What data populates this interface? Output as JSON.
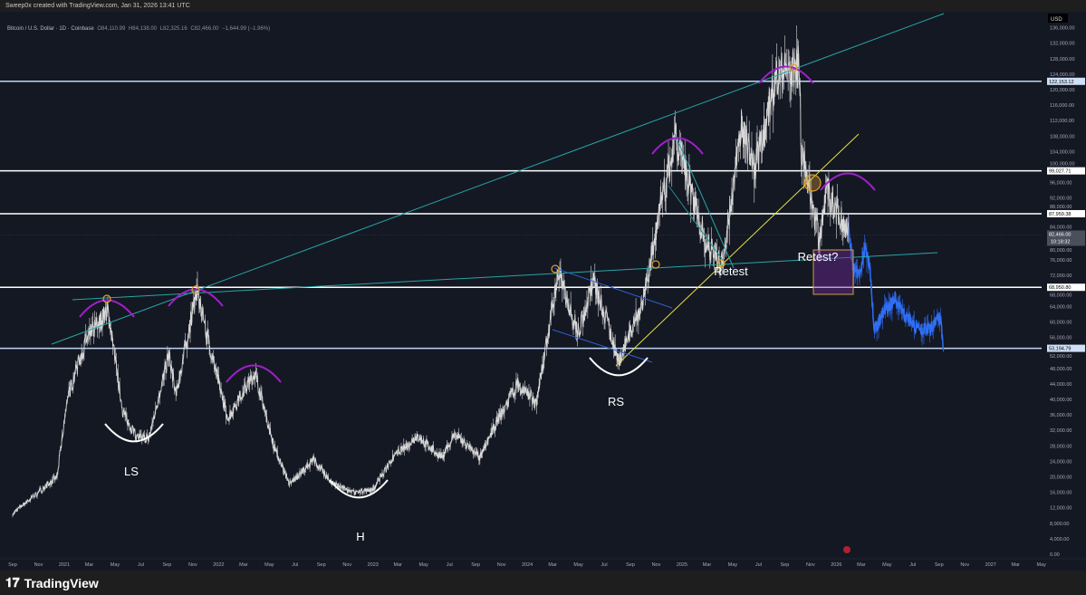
{
  "header": {
    "attribution": "Sweep0x created with TradingView.com, Jan 31, 2026 13:41 UTC"
  },
  "legend": {
    "symbol": "Bitcoin / U.S. Dollar · 1D · Coinbase",
    "open": "O84,110.99",
    "high": "H84,138.00",
    "low": "L82,325.16",
    "close": "C82,466.00",
    "change": "−1,644.99 (−1.96%)"
  },
  "footer": {
    "brand": "TradingView"
  },
  "colors": {
    "background": "#141823",
    "price": "#d8d8d8",
    "projection": "#2f6ef5",
    "teal": "#26a6a6",
    "yellow": "#e6e14a",
    "purple": "#a020c8",
    "orange": "#e0a030",
    "level_white": "#ffffff",
    "level_blue": "#bcd6f5"
  },
  "chart_data": {
    "type": "line",
    "currency": "USD",
    "ylim": [
      0,
      136000
    ],
    "y_ticks": [
      "136,000.00",
      "132,000.00",
      "128,000.00",
      "124,000.00",
      "120,000.00",
      "116,000.00",
      "112,000.00",
      "108,000.00",
      "104,000.00",
      "100,000.00",
      "96,000.00",
      "92,000.00",
      "88,000.00",
      "84,000.00",
      "80,000.00",
      "76,000.00",
      "72,000.00",
      "68,000.00",
      "64,000.00",
      "60,000.00",
      "56,000.00",
      "52,000.00",
      "48,000.00",
      "44,000.00",
      "40,000.00",
      "36,000.00",
      "32,000.00",
      "28,000.00",
      "24,000.00",
      "20,000.00",
      "16,000.00",
      "12,000.00",
      "8,000.00",
      "4,000.00",
      "0.00"
    ],
    "x_ticks": [
      "Sep",
      "Nov",
      "2021",
      "Mar",
      "May",
      "Jul",
      "Sep",
      "Nov",
      "2022",
      "Mar",
      "May",
      "Jul",
      "Sep",
      "Nov",
      "2023",
      "Mar",
      "May",
      "Jul",
      "Sep",
      "Nov",
      "2024",
      "Mar",
      "May",
      "Jul",
      "Sep",
      "Nov",
      "2025",
      "Mar",
      "May",
      "Jul",
      "Sep",
      "Nov",
      "2026",
      "Mar",
      "May",
      "Jul",
      "Sep",
      "Nov",
      "2027",
      "Mar",
      "May"
    ],
    "series": [
      {
        "points": [
          [
            "2020-09-01",
            10500
          ],
          [
            "2020-12-15",
            20000
          ],
          [
            "2021-01-08",
            40000
          ],
          [
            "2021-02-20",
            55000
          ],
          [
            "2021-04-14",
            63000
          ],
          [
            "2021-05-19",
            37000
          ],
          [
            "2021-06-22",
            30000
          ],
          [
            "2021-07-20",
            30000
          ],
          [
            "2021-09-06",
            52000
          ],
          [
            "2021-09-22",
            41000
          ],
          [
            "2021-11-10",
            68000
          ],
          [
            "2022-01-22",
            35000
          ],
          [
            "2022-03-28",
            47000
          ],
          [
            "2022-05-12",
            28000
          ],
          [
            "2022-06-18",
            18000
          ],
          [
            "2022-08-14",
            24500
          ],
          [
            "2022-09-20",
            19000
          ],
          [
            "2022-11-09",
            16000
          ],
          [
            "2022-12-30",
            16500
          ],
          [
            "2023-02-15",
            24500
          ],
          [
            "2023-04-14",
            30500
          ],
          [
            "2023-06-15",
            25000
          ],
          [
            "2023-07-13",
            31000
          ],
          [
            "2023-09-11",
            25000
          ],
          [
            "2023-10-25",
            35000
          ],
          [
            "2023-12-08",
            44000
          ],
          [
            "2024-01-23",
            39000
          ],
          [
            "2024-03-14",
            73000
          ],
          [
            "2024-05-01",
            57000
          ],
          [
            "2024-06-05",
            71000
          ],
          [
            "2024-08-05",
            50000
          ],
          [
            "2024-09-30",
            65000
          ],
          [
            "2024-11-12",
            90000
          ],
          [
            "2024-12-17",
            107000
          ],
          [
            "2025-02-28",
            80000
          ],
          [
            "2025-04-07",
            75000
          ],
          [
            "2025-05-22",
            111000
          ],
          [
            "2025-06-22",
            99000
          ],
          [
            "2025-08-14",
            124000
          ],
          [
            "2025-10-06",
            126000
          ],
          [
            "2025-10-10",
            105000
          ],
          [
            "2025-11-21",
            82000
          ],
          [
            "2025-12-10",
            94000
          ],
          [
            "2026-01-31",
            82466
          ]
        ]
      },
      {
        "kind": "projection",
        "points": [
          [
            "2026-01-31",
            82466
          ],
          [
            "2026-02-10",
            74000
          ],
          [
            "2026-02-25",
            72000
          ],
          [
            "2026-03-10",
            79000
          ],
          [
            "2026-03-22",
            74000
          ],
          [
            "2026-04-01",
            58000
          ],
          [
            "2026-04-25",
            63000
          ],
          [
            "2026-05-20",
            66000
          ],
          [
            "2026-06-10",
            62000
          ],
          [
            "2026-07-05",
            59000
          ],
          [
            "2026-08-10",
            58000
          ],
          [
            "2026-09-05",
            61000
          ],
          [
            "2026-09-12",
            53000
          ]
        ]
      }
    ],
    "levels": [
      {
        "price": 122153.12,
        "label": "122,153.12",
        "style": "blue"
      },
      {
        "price": 99027.71,
        "label": "99,027.71",
        "style": "white"
      },
      {
        "price": 87959.38,
        "label": "87,959.38",
        "style": "white"
      },
      {
        "price": 68950.8,
        "label": "68,950.80",
        "style": "white"
      },
      {
        "price": 53194.79,
        "label": "53,194.79",
        "style": "blue"
      }
    ],
    "current_price": {
      "label": "82,466.00",
      "countdown": "10:18:32"
    },
    "annotations": [
      "LS",
      "H",
      "RS",
      "Retest",
      "Retest?"
    ]
  }
}
